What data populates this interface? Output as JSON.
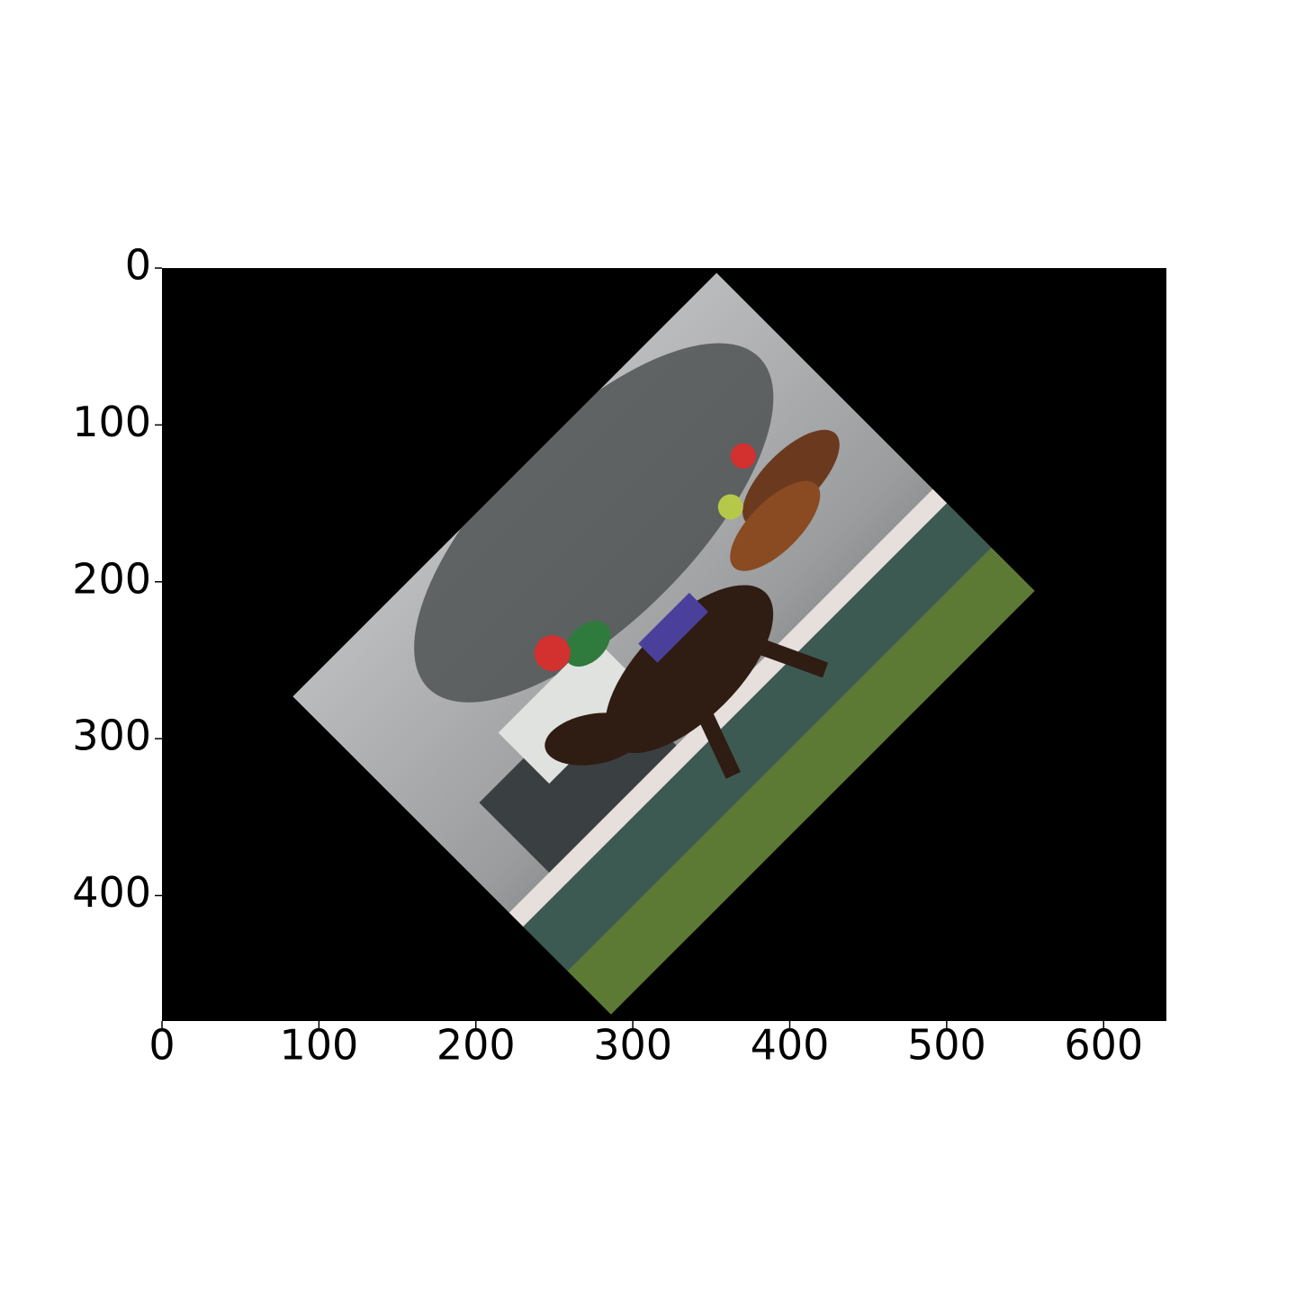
{
  "chart_data": {
    "type": "image",
    "xlim": [
      0,
      640
    ],
    "ylim": [
      480,
      0
    ],
    "xticks": [
      0,
      100,
      200,
      300,
      400,
      500,
      600
    ],
    "yticks": [
      0,
      100,
      200,
      300,
      400
    ]
  }
}
